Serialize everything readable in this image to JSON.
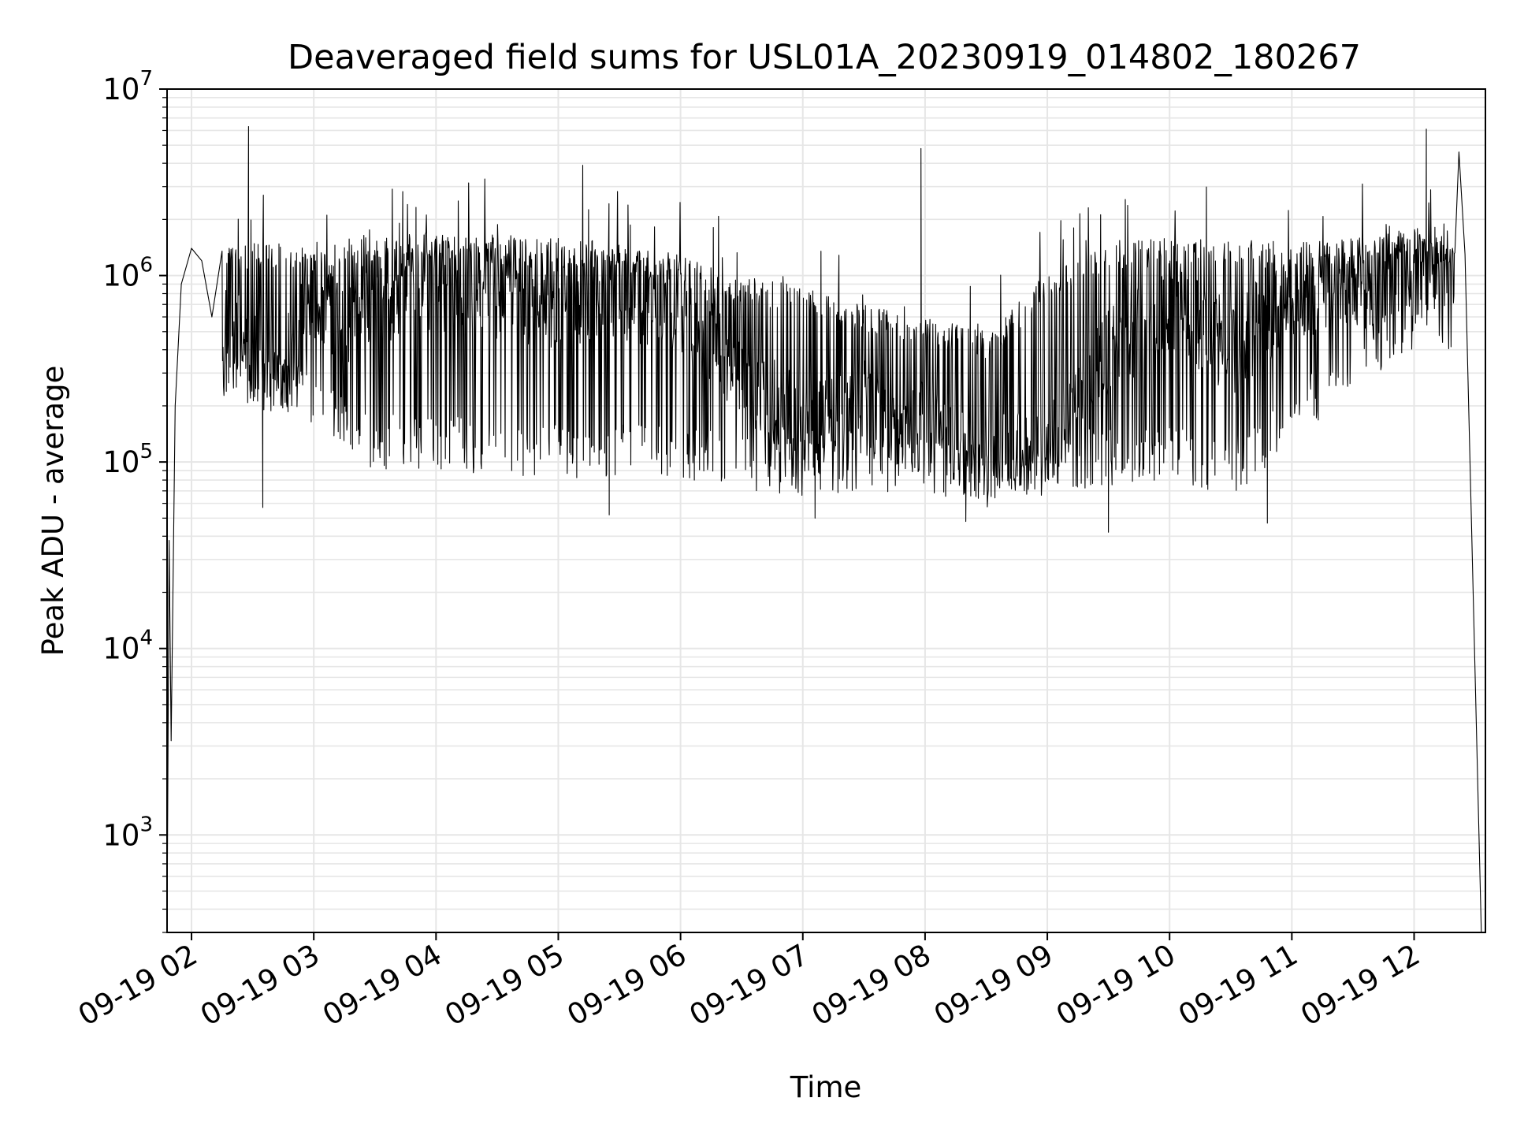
{
  "chart_data": {
    "type": "line",
    "title": "Deaveraged field sums for USL01A_20230919_014802_180267",
    "xlabel": "Time",
    "ylabel": "Peak ADU - average",
    "yscale": "log",
    "grid": true,
    "line_color": "#000000",
    "grid_color": "#e6e6e6",
    "ylim": [
      300,
      10000000
    ],
    "xlim": [
      "2023-09-19 01:48",
      "2023-09-19 12:35"
    ],
    "x_tick_labels": [
      "09-19 02",
      "09-19 03",
      "09-19 04",
      "09-19 05",
      "09-19 06",
      "09-19 07",
      "09-19 08",
      "09-19 09",
      "09-19 10",
      "09-19 11",
      "09-19 12"
    ],
    "y_tick_labels": [
      {
        "base": "10",
        "exp": "3"
      },
      {
        "base": "10",
        "exp": "4"
      },
      {
        "base": "10",
        "exp": "5"
      },
      {
        "base": "10",
        "exp": "6"
      },
      {
        "base": "10",
        "exp": "7"
      }
    ],
    "x": [
      "2023-09-19 01:48",
      "2023-09-19 01:49",
      "2023-09-19 01:50",
      "2023-09-19 01:52",
      "2023-09-19 01:55",
      "2023-09-19 02:00",
      "2023-09-19 02:05",
      "2023-09-19 02:10",
      "2023-09-19 02:20",
      "2023-09-19 02:30",
      "2023-09-19 02:45",
      "2023-09-19 03:00",
      "2023-09-19 03:15",
      "2023-09-19 03:30",
      "2023-09-19 04:00",
      "2023-09-19 04:30",
      "2023-09-19 05:00",
      "2023-09-19 05:30",
      "2023-09-19 06:00",
      "2023-09-19 06:30",
      "2023-09-19 07:00",
      "2023-09-19 07:30",
      "2023-09-19 08:00",
      "2023-09-19 08:30",
      "2023-09-19 09:00",
      "2023-09-19 09:30",
      "2023-09-19 10:00",
      "2023-09-19 10:30",
      "2023-09-19 11:00",
      "2023-09-19 11:30",
      "2023-09-19 12:00",
      "2023-09-19 12:15",
      "2023-09-19 12:25",
      "2023-09-19 12:33"
    ],
    "y": [
      300,
      38000,
      3200,
      200000,
      900000,
      1400000,
      1200000,
      600000,
      500000,
      350000,
      300000,
      800000,
      600000,
      700000,
      900000,
      800000,
      700000,
      800000,
      600000,
      300000,
      150000,
      200000,
      150000,
      100000,
      110000,
      400000,
      700000,
      400000,
      800000,
      900000,
      1000000,
      1200000,
      1300000,
      300
    ],
    "peaks": [
      {
        "x": "2023-09-19 02:28",
        "y": 6300000
      },
      {
        "x": "2023-09-19 05:12",
        "y": 3900000
      },
      {
        "x": "2023-09-19 07:58",
        "y": 4800000
      },
      {
        "x": "2023-09-19 12:06",
        "y": 6100000
      },
      {
        "x": "2023-09-19 12:22",
        "y": 4600000
      }
    ],
    "troughs": [
      {
        "x": "2023-09-19 02:35",
        "y": 57000
      },
      {
        "x": "2023-09-19 05:25",
        "y": 52000
      },
      {
        "x": "2023-09-19 07:06",
        "y": 50000
      },
      {
        "x": "2023-09-19 08:20",
        "y": 48000
      },
      {
        "x": "2023-09-19 09:30",
        "y": 42000
      },
      {
        "x": "2023-09-19 10:48",
        "y": 47000
      }
    ],
    "envelope": {
      "x": [
        "2023-09-19 02:15",
        "2023-09-19 03:00",
        "2023-09-19 03:30",
        "2023-09-19 04:00",
        "2023-09-19 05:00",
        "2023-09-19 05:30",
        "2023-09-19 06:00",
        "2023-09-19 06:30",
        "2023-09-19 07:00",
        "2023-09-19 07:30",
        "2023-09-19 08:00",
        "2023-09-19 08:30",
        "2023-09-19 09:00",
        "2023-09-19 09:30",
        "2023-09-19 10:00",
        "2023-09-19 10:30",
        "2023-09-19 11:00",
        "2023-09-19 11:30",
        "2023-09-19 12:00",
        "2023-09-19 12:20"
      ],
      "upper": [
        1500000,
        1500000,
        1700000,
        1700000,
        1600000,
        1500000,
        1300000,
        1000000,
        900000,
        700000,
        600000,
        500000,
        1000000,
        1500000,
        1600000,
        1600000,
        1500000,
        1600000,
        1700000,
        1500000
      ],
      "lower": [
        220000,
        150000,
        90000,
        90000,
        80000,
        80000,
        80000,
        70000,
        65000,
        70000,
        65000,
        65000,
        65000,
        75000,
        80000,
        65000,
        120000,
        250000,
        400000,
        400000
      ]
    }
  }
}
